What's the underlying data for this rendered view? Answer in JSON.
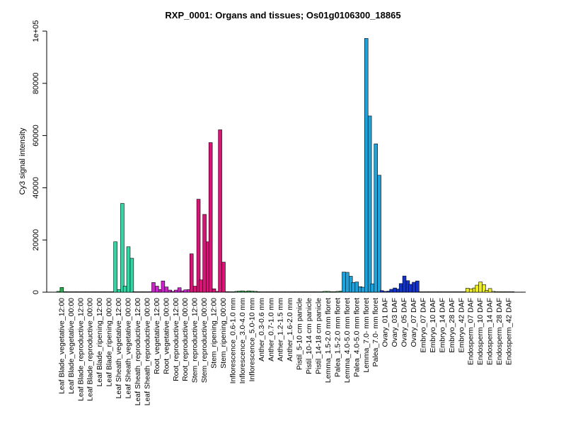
{
  "chart_data": {
    "type": "bar",
    "title": "RXP_0001: Organs and tissues; Os01g0106300_18865",
    "ylabel": "Cy3 signal intensity",
    "xlabel": "",
    "ylim": [
      0,
      100000
    ],
    "yticks": [
      {
        "value": 0,
        "label": "0"
      },
      {
        "value": 20000,
        "label": "20000"
      },
      {
        "value": 40000,
        "label": "40000"
      },
      {
        "value": 60000,
        "label": "60000"
      },
      {
        "value": 80000,
        "label": "80000"
      },
      {
        "value": 100000,
        "label": "1e+05"
      }
    ],
    "grid": false,
    "categories": [
      "Leaf Blade_vegetative_12:00",
      "Leaf Blade_vegetative_00:00",
      "Leaf Blade_reproductive_12:00",
      "Leaf Blade_reproductive_00:00",
      "Leaf Blade_ripening_12:00",
      "Leaf Blade_ripening_00:00",
      "Leaf Sheath_vegetative_12:00",
      "Leaf Sheath_vegetative_00:00",
      "Leaf Sheath_reproductive_12:00",
      "Leaf Sheath_reproductive_00:00",
      "Root_vegetative_12:00",
      "Root_vegetative_00:00",
      "Root_reproductive_12:00",
      "Root_reproductive_00:00",
      "Stem_reproductive_12:00",
      "Stem_reproductive_00:00",
      "Stem_ripening_12:00",
      "Stem_ripening_00:00",
      "Inflorescence_0.6-1.0 mm",
      "Inflorescence_3.0-4.0 mm",
      "Inflorescence_5.0-10 mm",
      "Anther_0.3-0.6 mm",
      "Anther_0.7-1.0 mm",
      "Anther_1.2-1.5 mm",
      "Anther_1.6-2.0 mm",
      "Pistil_5-10 cm panicle",
      "Pistil_10-14 cm panicle",
      "Pistil_14-18 cm panicle",
      "Lemma_1.5-2.0 mm floret",
      "Palea_1.5-2.0 mm floret",
      "Lemma_4.0-5.0 mm floret",
      "Palea_4.0-5.0 mm floret",
      "Lemma_7.0- mm floret",
      "Palea_7.0- mm floret",
      "Ovary_01 DAF",
      "Ovary_03 DAF",
      "Ovary_05 DAF",
      "Ovary_07 DAF",
      "Embryo_07 DAF",
      "Embryo_10 DAF",
      "Embryo_14 DAF",
      "Embryo_28 DAF",
      "Embryo_42 DAF",
      "Endosperm_07 DAF",
      "Endosperm_10 DAF",
      "Endosperm_14 DAF",
      "Endosperm_28 DAF",
      "Endosperm_42 DAF"
    ],
    "groups": [
      {
        "color": "#22b14c",
        "values": [
          300,
          1800,
          200
        ]
      },
      {
        "color": "#22b14c",
        "values": [
          150,
          150,
          100
        ]
      },
      {
        "color": "#22b14c",
        "values": [
          150,
          150,
          100
        ]
      },
      {
        "color": "#22b14c",
        "values": [
          150,
          150,
          100
        ]
      },
      {
        "color": "#22b14c",
        "values": [
          150,
          150,
          100
        ]
      },
      {
        "color": "#22b14c",
        "values": [
          150,
          150,
          100
        ]
      },
      {
        "color": "#2ed8a4",
        "values": [
          19300,
          1000,
          34000
        ]
      },
      {
        "color": "#2ed8a4",
        "values": [
          2300,
          17400,
          13000
        ]
      },
      {
        "color": "#2ed8a4",
        "values": [
          150,
          150,
          100
        ]
      },
      {
        "color": "#2ed8a4",
        "values": [
          150,
          150,
          100
        ]
      },
      {
        "color": "#cc22cc",
        "values": [
          3700,
          2300,
          1000
        ]
      },
      {
        "color": "#cc22cc",
        "values": [
          4300,
          2000,
          800
        ]
      },
      {
        "color": "#cc22cc",
        "values": [
          300,
          800,
          1700
        ]
      },
      {
        "color": "#cc22cc",
        "values": [
          500,
          900,
          1000
        ]
      },
      {
        "color": "#dd1177",
        "values": [
          14700,
          2300,
          35600
        ]
      },
      {
        "color": "#dd1177",
        "values": [
          4700,
          29800,
          19300
        ]
      },
      {
        "color": "#dd1177",
        "values": [
          57300,
          1300,
          300
        ]
      },
      {
        "color": "#dd1177",
        "values": [
          62200,
          11500,
          200
        ]
      },
      {
        "color": "#22b14c",
        "values": [
          150,
          150,
          300
        ]
      },
      {
        "color": "#22b14c",
        "values": [
          400,
          500,
          300
        ]
      },
      {
        "color": "#22b14c",
        "values": [
          500,
          400,
          300
        ]
      },
      {
        "color": "#22b14c",
        "values": [
          200,
          150,
          150
        ]
      },
      {
        "color": "#22b14c",
        "values": [
          150,
          150,
          150
        ]
      },
      {
        "color": "#22b14c",
        "values": [
          150,
          150,
          150
        ]
      },
      {
        "color": "#22b14c",
        "values": [
          150,
          150,
          150
        ]
      },
      {
        "color": "#22b14c",
        "values": [
          150,
          150,
          150
        ]
      },
      {
        "color": "#22b14c",
        "values": [
          150,
          150,
          150
        ]
      },
      {
        "color": "#22b14c",
        "values": [
          150,
          150,
          150
        ]
      },
      {
        "color": "#22b14c",
        "values": [
          300,
          300,
          200
        ]
      },
      {
        "color": "#22b14c",
        "values": [
          200,
          300,
          400
        ]
      },
      {
        "color": "#1aa3dd",
        "values": [
          7700,
          7600,
          6100
        ]
      },
      {
        "color": "#1aa3dd",
        "values": [
          3700,
          3900,
          2100
        ]
      },
      {
        "color": "#1aa3dd",
        "values": [
          1900,
          97200,
          67500
        ]
      },
      {
        "color": "#1aa3dd",
        "values": [
          3200,
          56800,
          44800
        ]
      },
      {
        "color": "#1133cc",
        "values": [
          600,
          300,
          400
        ]
      },
      {
        "color": "#1133cc",
        "values": [
          1100,
          1600,
          1200
        ]
      },
      {
        "color": "#1133cc",
        "values": [
          3300,
          6200,
          4400
        ]
      },
      {
        "color": "#1133cc",
        "values": [
          3000,
          3800,
          4300
        ]
      },
      {
        "color": "#cccc22",
        "values": [
          150,
          150,
          150
        ]
      },
      {
        "color": "#cccc22",
        "values": [
          150,
          150,
          150
        ]
      },
      {
        "color": "#cccc22",
        "values": [
          150,
          150,
          150
        ]
      },
      {
        "color": "#cccc22",
        "values": [
          150,
          150,
          150
        ]
      },
      {
        "color": "#cccc22",
        "values": [
          150,
          150,
          150
        ]
      },
      {
        "color": "#eeee22",
        "values": [
          1500,
          1300,
          1600
        ]
      },
      {
        "color": "#eeee22",
        "values": [
          2700,
          3900,
          2900
        ]
      },
      {
        "color": "#eeee22",
        "values": [
          700,
          1400,
          300
        ]
      },
      {
        "color": "#eeee22",
        "values": [
          200,
          200,
          150
        ]
      },
      {
        "color": "#eeee22",
        "values": [
          150,
          150,
          150
        ]
      }
    ]
  }
}
